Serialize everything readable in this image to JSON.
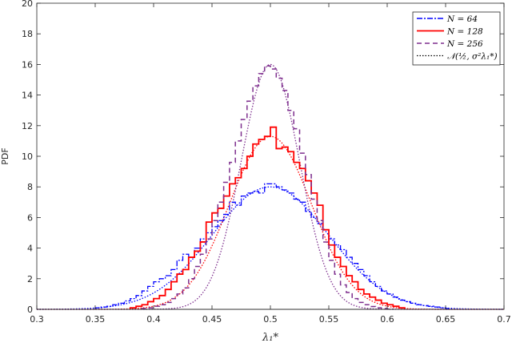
{
  "chart_data": {
    "type": "line",
    "xlabel": "λ₁*",
    "ylabel": "PDF",
    "xlim": [
      0.3,
      0.7
    ],
    "ylim": [
      0,
      20
    ],
    "x_ticks": [
      "0.3",
      "0.35",
      "0.4",
      "0.45",
      "0.5",
      "0.55",
      "0.6",
      "0.65",
      "0.7"
    ],
    "y_ticks": [
      "0",
      "2",
      "4",
      "6",
      "8",
      "10",
      "12",
      "14",
      "16",
      "18",
      "20"
    ],
    "grid": false,
    "legend_position": "top-right",
    "legend": [
      "N = 64",
      "N = 128",
      "N = 256",
      "𝒩(½, σ²λ₁*)"
    ],
    "colors": {
      "n64": "#0000ff",
      "n128": "#ff0000",
      "n256": "#7e2f8e",
      "normal": "#000000"
    },
    "series": [
      {
        "name": "N = 64",
        "style": "dash-dot stairs",
        "bin_width": 0.005,
        "bin_starts": [
          0.35,
          0.355,
          0.36,
          0.365,
          0.37,
          0.375,
          0.38,
          0.385,
          0.39,
          0.395,
          0.4,
          0.405,
          0.41,
          0.415,
          0.42,
          0.425,
          0.43,
          0.435,
          0.44,
          0.445,
          0.45,
          0.455,
          0.46,
          0.465,
          0.47,
          0.475,
          0.48,
          0.485,
          0.49,
          0.495,
          0.5,
          0.505,
          0.51,
          0.515,
          0.52,
          0.525,
          0.53,
          0.535,
          0.54,
          0.545,
          0.55,
          0.555,
          0.56,
          0.565,
          0.57,
          0.575,
          0.58,
          0.585,
          0.59,
          0.595,
          0.6,
          0.605,
          0.61,
          0.615,
          0.62,
          0.625,
          0.63,
          0.635,
          0.64,
          0.645,
          0.65
        ],
        "values": [
          0.1,
          0.15,
          0.2,
          0.3,
          0.4,
          0.55,
          0.7,
          0.9,
          1.2,
          1.5,
          1.8,
          2.0,
          2.2,
          2.6,
          3.2,
          3.6,
          3.4,
          4.0,
          4.6,
          5.0,
          5.4,
          5.8,
          6.2,
          7.0,
          6.8,
          7.4,
          7.6,
          7.7,
          7.6,
          8.2,
          8.2,
          8.0,
          7.8,
          7.6,
          7.2,
          7.0,
          6.4,
          6.0,
          5.6,
          5.2,
          4.6,
          4.2,
          3.9,
          3.4,
          3.0,
          2.6,
          2.2,
          1.8,
          1.5,
          1.2,
          1.0,
          0.8,
          0.6,
          0.5,
          0.4,
          0.3,
          0.25,
          0.2,
          0.15,
          0.1,
          0.05
        ]
      },
      {
        "name": "N = 128",
        "style": "solid stairs",
        "bin_width": 0.005,
        "bin_starts": [
          0.38,
          0.385,
          0.39,
          0.395,
          0.4,
          0.405,
          0.41,
          0.415,
          0.42,
          0.425,
          0.43,
          0.435,
          0.44,
          0.445,
          0.45,
          0.455,
          0.46,
          0.465,
          0.47,
          0.475,
          0.48,
          0.485,
          0.49,
          0.495,
          0.5,
          0.505,
          0.51,
          0.515,
          0.52,
          0.525,
          0.53,
          0.535,
          0.54,
          0.545,
          0.55,
          0.555,
          0.56,
          0.565,
          0.57,
          0.575,
          0.58,
          0.585,
          0.59,
          0.595,
          0.6,
          0.605,
          0.61
        ],
        "values": [
          0.1,
          0.2,
          0.3,
          0.5,
          0.7,
          0.9,
          1.3,
          1.8,
          2.3,
          2.6,
          3.4,
          3.8,
          4.4,
          5.7,
          6.3,
          6.6,
          7.4,
          8.2,
          8.6,
          9.2,
          10.0,
          10.8,
          11.1,
          11.3,
          11.9,
          10.5,
          10.6,
          10.3,
          9.6,
          9.2,
          8.4,
          7.6,
          6.8,
          5.2,
          4.2,
          3.4,
          2.8,
          2.2,
          1.8,
          1.3,
          1.0,
          0.8,
          0.6,
          0.4,
          0.3,
          0.2,
          0.1
        ]
      },
      {
        "name": "N = 256",
        "style": "dashed stairs",
        "bin_width": 0.005,
        "bin_starts": [
          0.39,
          0.395,
          0.4,
          0.405,
          0.41,
          0.415,
          0.42,
          0.425,
          0.43,
          0.435,
          0.44,
          0.445,
          0.45,
          0.455,
          0.46,
          0.465,
          0.47,
          0.475,
          0.48,
          0.485,
          0.49,
          0.495,
          0.5,
          0.505,
          0.51,
          0.515,
          0.52,
          0.525,
          0.53,
          0.535,
          0.54,
          0.545,
          0.55,
          0.555,
          0.56,
          0.565,
          0.57,
          0.575,
          0.58,
          0.585,
          0.59,
          0.595,
          0.6
        ],
        "values": [
          0.05,
          0.1,
          0.2,
          0.3,
          0.45,
          0.7,
          1.0,
          1.4,
          2.0,
          2.8,
          3.6,
          4.6,
          5.8,
          7.0,
          8.3,
          9.6,
          11.0,
          12.4,
          13.6,
          14.6,
          15.4,
          15.9,
          15.7,
          15.1,
          14.3,
          13.0,
          11.8,
          10.2,
          8.8,
          7.2,
          5.8,
          4.4,
          3.2,
          2.3,
          1.6,
          1.1,
          0.7,
          0.45,
          0.3,
          0.18,
          0.1,
          0.05,
          0.02
        ]
      },
      {
        "name": "𝒩(½, σ²λ₁*)",
        "style": "dotted curves",
        "curves": [
          {
            "mean": 0.5,
            "peak": 8.0
          },
          {
            "mean": 0.5,
            "peak": 11.3
          },
          {
            "mean": 0.5,
            "peak": 16.0
          }
        ]
      }
    ]
  }
}
